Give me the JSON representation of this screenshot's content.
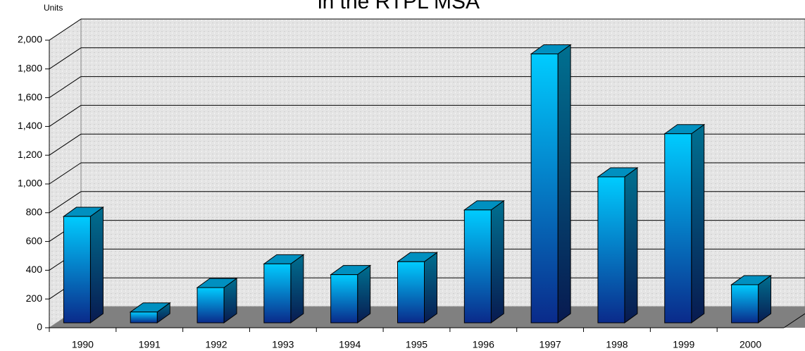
{
  "chart_data": {
    "type": "bar",
    "title": "in the RTPL MSA",
    "y_label": "Units",
    "categories": [
      "1990",
      "1991",
      "1992",
      "1993",
      "1994",
      "1995",
      "1996",
      "1997",
      "1998",
      "1999",
      "2000"
    ],
    "values": [
      740,
      75,
      245,
      410,
      335,
      425,
      785,
      1870,
      1015,
      1315,
      265
    ],
    "color": "#00b4e6",
    "ylim": [
      0,
      2000
    ],
    "yticks": [
      0,
      200,
      400,
      600,
      800,
      {
        "value": 1000,
        "label": "1,000"
      },
      {
        "value": 1200,
        "label": "1,200"
      },
      {
        "value": 1400,
        "label": "1,400"
      },
      {
        "value": 1600,
        "label": "1,600"
      },
      {
        "value": 1800,
        "label": "1,800"
      },
      {
        "value": 2000,
        "label": "2,000"
      }
    ],
    "grid": true
  }
}
